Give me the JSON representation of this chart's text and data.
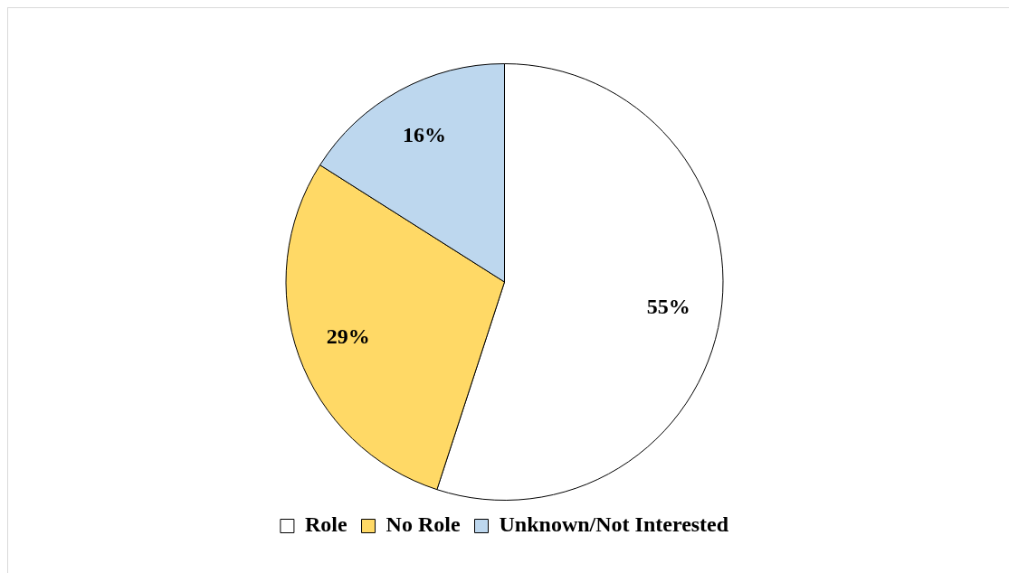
{
  "chart_data": {
    "type": "pie",
    "categories": [
      "Role",
      "No Role",
      "Unknown/Not Interested"
    ],
    "values": [
      55,
      29,
      16
    ],
    "colors": [
      "#ffffff",
      "#ffd966",
      "#bdd7ee"
    ],
    "value_labels": [
      "55%",
      "29%",
      "16%"
    ],
    "legend": "bottom"
  }
}
